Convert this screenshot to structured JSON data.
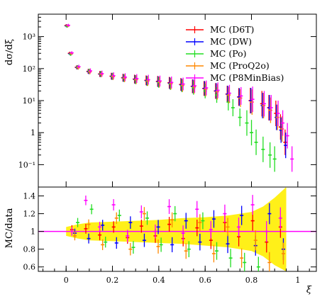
{
  "chart_data": [
    {
      "type": "scatter",
      "panel": "main",
      "ylabel": "dσ/dξ",
      "yscale": "log",
      "ylim": [
        0.02,
        5000
      ],
      "xlim": [
        -0.12,
        1.08
      ],
      "y_ticks": [
        {
          "value": 0.1,
          "label": "10⁻¹"
        },
        {
          "value": 1,
          "label": "1"
        },
        {
          "value": 10,
          "label": "10¹"
        },
        {
          "value": 100,
          "label": "10²"
        },
        {
          "value": 1000,
          "label": "10³"
        }
      ],
      "legend_position": "top-right",
      "series": [
        {
          "name": "MC (D6T)",
          "color": "#ff0000",
          "points": [
            [
              0.005,
              2200
            ],
            [
              0.02,
              300
            ],
            [
              0.05,
              110
            ],
            [
              0.1,
              82
            ],
            [
              0.15,
              68
            ],
            [
              0.2,
              58
            ],
            [
              0.25,
              52
            ],
            [
              0.3,
              47
            ],
            [
              0.35,
              43
            ],
            [
              0.4,
              40
            ],
            [
              0.45,
              36
            ],
            [
              0.5,
              32
            ],
            [
              0.55,
              28
            ],
            [
              0.6,
              24
            ],
            [
              0.65,
              20
            ],
            [
              0.7,
              16
            ],
            [
              0.75,
              13
            ],
            [
              0.8,
              10
            ],
            [
              0.85,
              8
            ],
            [
              0.88,
              6
            ],
            [
              0.91,
              4
            ],
            [
              0.93,
              1.5
            ],
            [
              0.95,
              0.5
            ]
          ]
        },
        {
          "name": "MC (DW)",
          "color": "#0000ff",
          "points": [
            [
              0.005,
              2150
            ],
            [
              0.02,
              290
            ],
            [
              0.05,
              108
            ],
            [
              0.1,
              80
            ],
            [
              0.15,
              67
            ],
            [
              0.2,
              57
            ],
            [
              0.25,
              51
            ],
            [
              0.3,
              46
            ],
            [
              0.35,
              42
            ],
            [
              0.4,
              39
            ],
            [
              0.45,
              35
            ],
            [
              0.5,
              31
            ],
            [
              0.55,
              28
            ],
            [
              0.6,
              24
            ],
            [
              0.65,
              20
            ],
            [
              0.7,
              16
            ],
            [
              0.75,
              13
            ],
            [
              0.8,
              10
            ],
            [
              0.85,
              7
            ],
            [
              0.88,
              6
            ],
            [
              0.91,
              3
            ],
            [
              0.93,
              1.2
            ],
            [
              0.95,
              0.4
            ]
          ]
        },
        {
          "name": "MC (P0)",
          "color": "#22dd22",
          "points": [
            [
              0.005,
              2100
            ],
            [
              0.02,
              280
            ],
            [
              0.05,
              112
            ],
            [
              0.1,
              84
            ],
            [
              0.15,
              69
            ],
            [
              0.2,
              58
            ],
            [
              0.25,
              51
            ],
            [
              0.3,
              45
            ],
            [
              0.35,
              41
            ],
            [
              0.4,
              37
            ],
            [
              0.45,
              33
            ],
            [
              0.5,
              29
            ],
            [
              0.55,
              25
            ],
            [
              0.6,
              20
            ],
            [
              0.65,
              15
            ],
            [
              0.7,
              9
            ],
            [
              0.72,
              6
            ],
            [
              0.75,
              3
            ],
            [
              0.78,
              2
            ],
            [
              0.8,
              1
            ],
            [
              0.82,
              0.5
            ],
            [
              0.85,
              0.3
            ],
            [
              0.88,
              0.2
            ],
            [
              0.9,
              0.15
            ]
          ]
        },
        {
          "name": "MC (ProQ20)",
          "color": "#ff8800",
          "points": [
            [
              0.005,
              2180
            ],
            [
              0.02,
              295
            ],
            [
              0.05,
              106
            ],
            [
              0.1,
              79
            ],
            [
              0.15,
              66
            ],
            [
              0.2,
              56
            ],
            [
              0.25,
              50
            ],
            [
              0.3,
              45
            ],
            [
              0.35,
              41
            ],
            [
              0.4,
              38
            ],
            [
              0.45,
              34
            ],
            [
              0.5,
              30
            ],
            [
              0.55,
              27
            ],
            [
              0.6,
              23
            ],
            [
              0.65,
              19
            ],
            [
              0.7,
              15
            ],
            [
              0.75,
              12
            ],
            [
              0.8,
              9
            ],
            [
              0.85,
              7
            ],
            [
              0.88,
              5
            ],
            [
              0.91,
              3
            ],
            [
              0.93,
              1.3
            ]
          ]
        },
        {
          "name": "MC (P8MinBias)",
          "color": "#ff00ff",
          "points": [
            [
              0.005,
              2250
            ],
            [
              0.02,
              310
            ],
            [
              0.05,
              115
            ],
            [
              0.1,
              85
            ],
            [
              0.15,
              70
            ],
            [
              0.2,
              60
            ],
            [
              0.25,
              54
            ],
            [
              0.3,
              49
            ],
            [
              0.35,
              45
            ],
            [
              0.4,
              41
            ],
            [
              0.45,
              37
            ],
            [
              0.5,
              33
            ],
            [
              0.55,
              29
            ],
            [
              0.6,
              25
            ],
            [
              0.65,
              21
            ],
            [
              0.7,
              17
            ],
            [
              0.75,
              14
            ],
            [
              0.8,
              11
            ],
            [
              0.85,
              8
            ],
            [
              0.88,
              6
            ],
            [
              0.91,
              4
            ],
            [
              0.93,
              2
            ],
            [
              0.95,
              0.8
            ],
            [
              0.97,
              0.15
            ]
          ]
        }
      ]
    },
    {
      "type": "scatter",
      "panel": "ratio",
      "ylabel": "MC/data",
      "xlabel": "ξ",
      "ylim": [
        0.55,
        1.5
      ],
      "xlim": [
        -0.12,
        1.08
      ],
      "x_ticks": [
        {
          "value": 0,
          "label": "0"
        },
        {
          "value": 0.2,
          "label": "0.2"
        },
        {
          "value": 0.4,
          "label": "0.4"
        },
        {
          "value": 0.6,
          "label": "0.6"
        },
        {
          "value": 0.8,
          "label": "0.8"
        },
        {
          "value": 1,
          "label": "1"
        }
      ],
      "y_ticks": [
        {
          "value": 0.6,
          "label": "0.6"
        },
        {
          "value": 0.8,
          "label": "0.8"
        },
        {
          "value": 1,
          "label": "1"
        },
        {
          "value": 1.2,
          "label": "1.2"
        },
        {
          "value": 1.4,
          "label": "1.4"
        }
      ],
      "reference_line": 1,
      "reference_color": "#ff00ff",
      "data_uncertainty_color": "#ffee00",
      "data_uncertainty_band": [
        [
          0.0,
          0.95,
          1.05
        ],
        [
          0.05,
          0.92,
          1.08
        ],
        [
          0.1,
          0.9,
          1.1
        ],
        [
          0.2,
          0.89,
          1.11
        ],
        [
          0.3,
          0.88,
          1.12
        ],
        [
          0.4,
          0.87,
          1.13
        ],
        [
          0.5,
          0.86,
          1.15
        ],
        [
          0.6,
          0.84,
          1.16
        ],
        [
          0.7,
          0.82,
          1.18
        ],
        [
          0.8,
          0.78,
          1.22
        ],
        [
          0.85,
          0.72,
          1.28
        ],
        [
          0.9,
          0.62,
          1.38
        ],
        [
          0.95,
          0.55,
          1.5
        ]
      ],
      "series": [
        {
          "name": "MC (D6T)",
          "color": "#ff0000",
          "points": [
            [
              0.03,
              1.02
            ],
            [
              0.09,
              1.03
            ],
            [
              0.15,
              0.96
            ],
            [
              0.21,
              1.05
            ],
            [
              0.27,
              0.93
            ],
            [
              0.33,
              1.06
            ],
            [
              0.39,
              0.95
            ],
            [
              0.45,
              1.08
            ],
            [
              0.51,
              0.92
            ],
            [
              0.57,
              1.04
            ],
            [
              0.63,
              0.9
            ],
            [
              0.69,
              1.1
            ],
            [
              0.75,
              0.94
            ],
            [
              0.81,
              1.12
            ],
            [
              0.87,
              0.88
            ],
            [
              0.93,
              1.05
            ]
          ]
        },
        {
          "name": "MC (DW)",
          "color": "#0000ff",
          "points": [
            [
              0.04,
              0.98
            ],
            [
              0.1,
              0.92
            ],
            [
              0.16,
              1.07
            ],
            [
              0.22,
              0.87
            ],
            [
              0.28,
              1.1
            ],
            [
              0.34,
              0.9
            ],
            [
              0.4,
              1.05
            ],
            [
              0.46,
              0.85
            ],
            [
              0.52,
              1.12
            ],
            [
              0.58,
              0.88
            ],
            [
              0.64,
              1.14
            ],
            [
              0.7,
              0.86
            ],
            [
              0.76,
              1.18
            ],
            [
              0.82,
              0.84
            ],
            [
              0.88,
              1.2
            ],
            [
              0.94,
              0.8
            ]
          ]
        },
        {
          "name": "MC (P0)",
          "color": "#22dd22",
          "points": [
            [
              0.05,
              1.1
            ],
            [
              0.11,
              1.25
            ],
            [
              0.17,
              0.88
            ],
            [
              0.23,
              1.18
            ],
            [
              0.29,
              0.82
            ],
            [
              0.35,
              1.15
            ],
            [
              0.41,
              0.85
            ],
            [
              0.47,
              1.2
            ],
            [
              0.53,
              0.8
            ],
            [
              0.59,
              1.12
            ],
            [
              0.65,
              0.78
            ],
            [
              0.71,
              0.7
            ],
            [
              0.77,
              0.65
            ],
            [
              0.83,
              0.6
            ]
          ]
        },
        {
          "name": "MC (ProQ20)",
          "color": "#ff8800",
          "points": [
            [
              0.035,
              0.95
            ],
            [
              0.095,
              1.08
            ],
            [
              0.155,
              0.85
            ],
            [
              0.215,
              1.15
            ],
            [
              0.275,
              0.8
            ],
            [
              0.335,
              1.2
            ],
            [
              0.395,
              0.83
            ],
            [
              0.455,
              1.13
            ],
            [
              0.515,
              0.78
            ],
            [
              0.575,
              1.1
            ],
            [
              0.635,
              0.75
            ],
            [
              0.695,
              1.05
            ],
            [
              0.755,
              0.7
            ],
            [
              0.815,
              0.9
            ],
            [
              0.875,
              0.65
            ],
            [
              0.935,
              0.75
            ]
          ]
        },
        {
          "name": "MC (P8MinBias)",
          "color": "#ff00ff",
          "points": [
            [
              0.02,
              1.0
            ],
            [
              0.08,
              1.35
            ],
            [
              0.14,
              1.05
            ],
            [
              0.2,
              1.3
            ],
            [
              0.26,
              0.95
            ],
            [
              0.32,
              1.22
            ],
            [
              0.38,
              1.0
            ],
            [
              0.44,
              1.28
            ],
            [
              0.5,
              0.98
            ],
            [
              0.56,
              1.25
            ],
            [
              0.62,
              1.02
            ],
            [
              0.68,
              1.2
            ],
            [
              0.74,
              1.05
            ],
            [
              0.8,
              1.3
            ],
            [
              0.86,
              1.0
            ],
            [
              0.92,
              1.15
            ]
          ]
        }
      ]
    }
  ],
  "legend": [
    {
      "label": "MC (D6T)",
      "color": "#ff0000"
    },
    {
      "label": "MC (DW)",
      "color": "#0000ff"
    },
    {
      "label": "MC (Po)",
      "color": "#22dd22"
    },
    {
      "label": "MC (ProQ2o)",
      "color": "#ff8800"
    },
    {
      "label": "MC (P8MinBias)",
      "color": "#ff00ff"
    }
  ]
}
